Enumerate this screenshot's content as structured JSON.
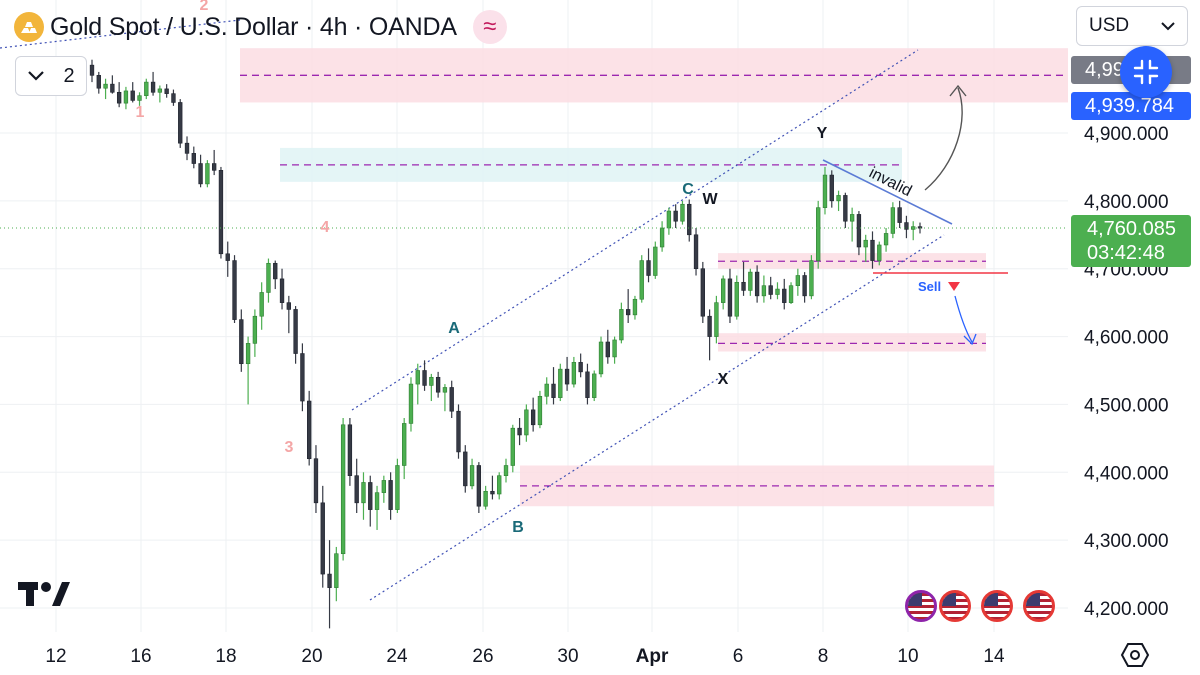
{
  "header": {
    "title": "Gold Spot / U.S. Dollar · 4h · OANDA",
    "indicator_count": "2",
    "currency": "USD"
  },
  "price_scale": {
    "tag_upper": "4,990.78",
    "tag_current_target": "4,939.784",
    "last_price": "4,760.085",
    "countdown": "03:42:48"
  },
  "chart_data": {
    "type": "candlestick",
    "ylim": [
      4170,
      5010
    ],
    "y_ticks": [
      4200,
      4300,
      4400,
      4500,
      4600,
      4700,
      4800,
      4900
    ],
    "y_tick_labels": [
      "4,200.000",
      "4,300.000",
      "4,400.000",
      "4,500.000",
      "4,600.000",
      "4,700.000",
      "4,800.000",
      "4,900.000"
    ],
    "x_tick_labels": [
      "12",
      "16",
      "18",
      "20",
      "24",
      "26",
      "30",
      "Apr",
      "6",
      "8",
      "10",
      "14"
    ],
    "grid": true,
    "last_price": 4760.085,
    "candles": [
      [
        5000,
        5008,
        4975,
        4985
      ],
      [
        4985,
        4990,
        4958,
        4966
      ],
      [
        4966,
        4980,
        4950,
        4972
      ],
      [
        4972,
        4985,
        4958,
        4960
      ],
      [
        4960,
        4975,
        4938,
        4944
      ],
      [
        4944,
        4968,
        4935,
        4962
      ],
      [
        4962,
        4975,
        4945,
        4948
      ],
      [
        4948,
        4960,
        4940,
        4955
      ],
      [
        4955,
        4980,
        4950,
        4975
      ],
      [
        4975,
        4990,
        4955,
        4960
      ],
      [
        4960,
        4970,
        4945,
        4965
      ],
      [
        4965,
        4972,
        4952,
        4958
      ],
      [
        4958,
        4964,
        4940,
        4945
      ],
      [
        4945,
        4950,
        4878,
        4885
      ],
      [
        4885,
        4895,
        4860,
        4870
      ],
      [
        4870,
        4880,
        4848,
        4855
      ],
      [
        4855,
        4868,
        4820,
        4825
      ],
      [
        4825,
        4860,
        4820,
        4855
      ],
      [
        4855,
        4875,
        4838,
        4845
      ],
      [
        4845,
        4850,
        4715,
        4722
      ],
      [
        4722,
        4740,
        4688,
        4712
      ],
      [
        4712,
        4720,
        4620,
        4625
      ],
      [
        4625,
        4640,
        4548,
        4560
      ],
      [
        4560,
        4600,
        4500,
        4590
      ],
      [
        4590,
        4640,
        4570,
        4630
      ],
      [
        4630,
        4680,
        4610,
        4665
      ],
      [
        4665,
        4715,
        4650,
        4708
      ],
      [
        4708,
        4712,
        4670,
        4685
      ],
      [
        4685,
        4700,
        4640,
        4650
      ],
      [
        4650,
        4660,
        4605,
        4640
      ],
      [
        4640,
        4645,
        4560,
        4575
      ],
      [
        4575,
        4590,
        4490,
        4505
      ],
      [
        4505,
        4520,
        4410,
        4420
      ],
      [
        4420,
        4440,
        4340,
        4355
      ],
      [
        4355,
        4380,
        4230,
        4250
      ],
      [
        4250,
        4300,
        4170,
        4230
      ],
      [
        4230,
        4290,
        4210,
        4280
      ],
      [
        4280,
        4480,
        4270,
        4470
      ],
      [
        4470,
        4480,
        4380,
        4395
      ],
      [
        4395,
        4420,
        4340,
        4355
      ],
      [
        4355,
        4400,
        4330,
        4385
      ],
      [
        4385,
        4395,
        4320,
        4345
      ],
      [
        4345,
        4380,
        4315,
        4370
      ],
      [
        4370,
        4395,
        4355,
        4388
      ],
      [
        4388,
        4400,
        4330,
        4345
      ],
      [
        4345,
        4420,
        4340,
        4410
      ],
      [
        4410,
        4480,
        4390,
        4472
      ],
      [
        4472,
        4540,
        4460,
        4530
      ],
      [
        4530,
        4560,
        4500,
        4550
      ],
      [
        4550,
        4565,
        4520,
        4528
      ],
      [
        4528,
        4545,
        4505,
        4540
      ],
      [
        4540,
        4548,
        4510,
        4518
      ],
      [
        4518,
        4530,
        4490,
        4525
      ],
      [
        4525,
        4535,
        4480,
        4490
      ],
      [
        4490,
        4500,
        4420,
        4430
      ],
      [
        4430,
        4440,
        4370,
        4380
      ],
      [
        4380,
        4420,
        4375,
        4410
      ],
      [
        4410,
        4415,
        4340,
        4350
      ],
      [
        4350,
        4380,
        4345,
        4372
      ],
      [
        4372,
        4395,
        4360,
        4368
      ],
      [
        4368,
        4400,
        4360,
        4395
      ],
      [
        4395,
        4420,
        4385,
        4410
      ],
      [
        4410,
        4470,
        4400,
        4465
      ],
      [
        4465,
        4480,
        4440,
        4455
      ],
      [
        4455,
        4500,
        4445,
        4492
      ],
      [
        4492,
        4510,
        4460,
        4470
      ],
      [
        4470,
        4520,
        4465,
        4512
      ],
      [
        4512,
        4540,
        4500,
        4530
      ],
      [
        4530,
        4555,
        4500,
        4510
      ],
      [
        4510,
        4560,
        4505,
        4552
      ],
      [
        4552,
        4570,
        4520,
        4530
      ],
      [
        4530,
        4570,
        4525,
        4562
      ],
      [
        4562,
        4575,
        4540,
        4548
      ],
      [
        4548,
        4560,
        4500,
        4510
      ],
      [
        4510,
        4550,
        4505,
        4545
      ],
      [
        4545,
        4600,
        4540,
        4592
      ],
      [
        4592,
        4610,
        4560,
        4570
      ],
      [
        4570,
        4600,
        4560,
        4595
      ],
      [
        4595,
        4650,
        4590,
        4640
      ],
      [
        4640,
        4670,
        4620,
        4632
      ],
      [
        4632,
        4660,
        4625,
        4655
      ],
      [
        4655,
        4720,
        4650,
        4712
      ],
      [
        4712,
        4730,
        4680,
        4690
      ],
      [
        4690,
        4740,
        4685,
        4732
      ],
      [
        4732,
        4770,
        4725,
        4760
      ],
      [
        4760,
        4790,
        4750,
        4785
      ],
      [
        4785,
        4795,
        4760,
        4770
      ],
      [
        4770,
        4800,
        4765,
        4795
      ],
      [
        4795,
        4802,
        4740,
        4750
      ],
      [
        4750,
        4760,
        4690,
        4700
      ],
      [
        4700,
        4710,
        4620,
        4630
      ],
      [
        4630,
        4640,
        4565,
        4600
      ],
      [
        4600,
        4660,
        4590,
        4650
      ],
      [
        4650,
        4690,
        4640,
        4685
      ],
      [
        4685,
        4700,
        4620,
        4630
      ],
      [
        4630,
        4690,
        4625,
        4680
      ],
      [
        4680,
        4710,
        4660,
        4668
      ],
      [
        4668,
        4700,
        4660,
        4695
      ],
      [
        4695,
        4705,
        4650,
        4660
      ],
      [
        4660,
        4690,
        4650,
        4675
      ],
      [
        4675,
        4688,
        4655,
        4662
      ],
      [
        4662,
        4680,
        4655,
        4670
      ],
      [
        4670,
        4685,
        4640,
        4650
      ],
      [
        4650,
        4680,
        4648,
        4675
      ],
      [
        4675,
        4700,
        4660,
        4690
      ],
      [
        4690,
        4695,
        4650,
        4660
      ],
      [
        4660,
        4720,
        4655,
        4712
      ],
      [
        4712,
        4800,
        4700,
        4790
      ],
      [
        4790,
        4850,
        4780,
        4838
      ],
      [
        4838,
        4845,
        4790,
        4800
      ],
      [
        4800,
        4815,
        4785,
        4808
      ],
      [
        4808,
        4812,
        4760,
        4770
      ],
      [
        4770,
        4790,
        4740,
        4780
      ],
      [
        4780,
        4785,
        4720,
        4732
      ],
      [
        4732,
        4750,
        4710,
        4742
      ],
      [
        4742,
        4755,
        4700,
        4712
      ],
      [
        4712,
        4740,
        4705,
        4735
      ],
      [
        4735,
        4760,
        4725,
        4752
      ],
      [
        4752,
        4798,
        4745,
        4790
      ],
      [
        4790,
        4800,
        4760,
        4768
      ],
      [
        4768,
        4778,
        4745,
        4758
      ],
      [
        4758,
        4770,
        4742,
        4762
      ],
      [
        4762,
        4768,
        4752,
        4760
      ]
    ],
    "zones": [
      {
        "kind": "supply",
        "y0": 4945,
        "y1": 5025,
        "mid": 4985
      },
      {
        "kind": "fvg",
        "y0": 4828,
        "y1": 4878,
        "mid": 4853
      },
      {
        "kind": "demand",
        "y0": 4700,
        "y1": 4723,
        "mid": 4711
      },
      {
        "kind": "demand",
        "y0": 4578,
        "y1": 4605,
        "mid": 4590
      },
      {
        "kind": "demand",
        "y0": 4350,
        "y1": 4410,
        "mid": 4380
      }
    ],
    "wave_labels": [
      {
        "text": "1",
        "kind": "impulse"
      },
      {
        "text": "2",
        "kind": "impulse"
      },
      {
        "text": "3",
        "kind": "impulse"
      },
      {
        "text": "4",
        "kind": "impulse"
      },
      {
        "text": "A",
        "kind": "correction"
      },
      {
        "text": "B",
        "kind": "correction"
      },
      {
        "text": "C",
        "kind": "correction"
      },
      {
        "text": "W",
        "kind": "complex"
      },
      {
        "text": "X",
        "kind": "complex"
      },
      {
        "text": "Y",
        "kind": "complex"
      }
    ],
    "annotations": {
      "invalid_label": "invalid",
      "sell_label": "Sell"
    }
  },
  "colors": {
    "bull": "#4caf50",
    "bear": "#363a45",
    "supply_zone": "#fbdde3",
    "fvg_zone": "#dff3f5",
    "dash_line": "#9c27b0",
    "channel": "#3f51b5",
    "last_price_line": "#4caf50",
    "impulse_label": "#f4a6a6",
    "correction_label": "#1a6a78",
    "complex_label": "#131722",
    "sell": "#2962ff",
    "sell_triangle": "#f23645"
  }
}
